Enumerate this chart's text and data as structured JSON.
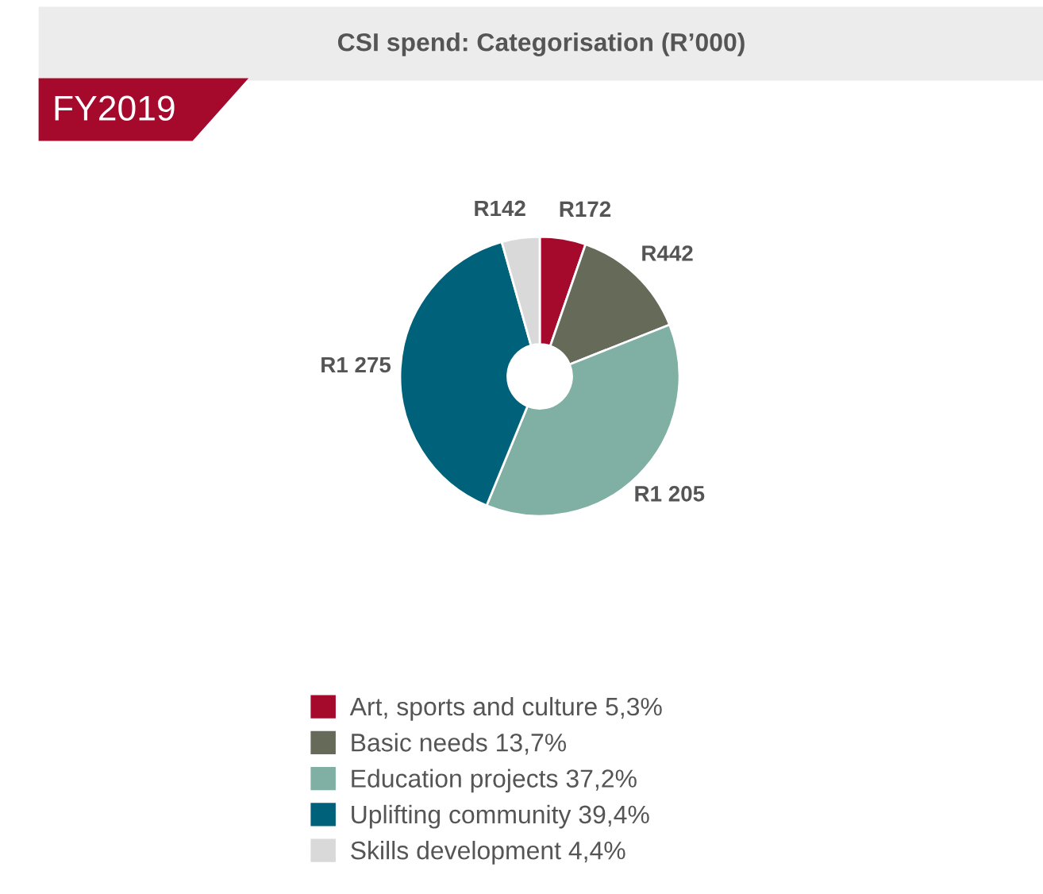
{
  "chart_data": {
    "type": "donut",
    "title": "CSI spend: Categorisation (R’000)",
    "subtitle": "FY2019",
    "categories": [
      "Art, sports and culture 5,3%",
      "Basic needs 13,7%",
      "Education projects 37,2%",
      "Uplifting community 39,4%",
      "Skills development 4,4%"
    ],
    "values": [
      172,
      442,
      1205,
      1275,
      142
    ],
    "value_labels": [
      "R172",
      "R442",
      "R1 205",
      "R1 275",
      "R142"
    ],
    "colors": [
      "#a50a2d",
      "#666a58",
      "#80afa3",
      "#00627a",
      "#d9d9d9"
    ],
    "legend": "bottom"
  }
}
